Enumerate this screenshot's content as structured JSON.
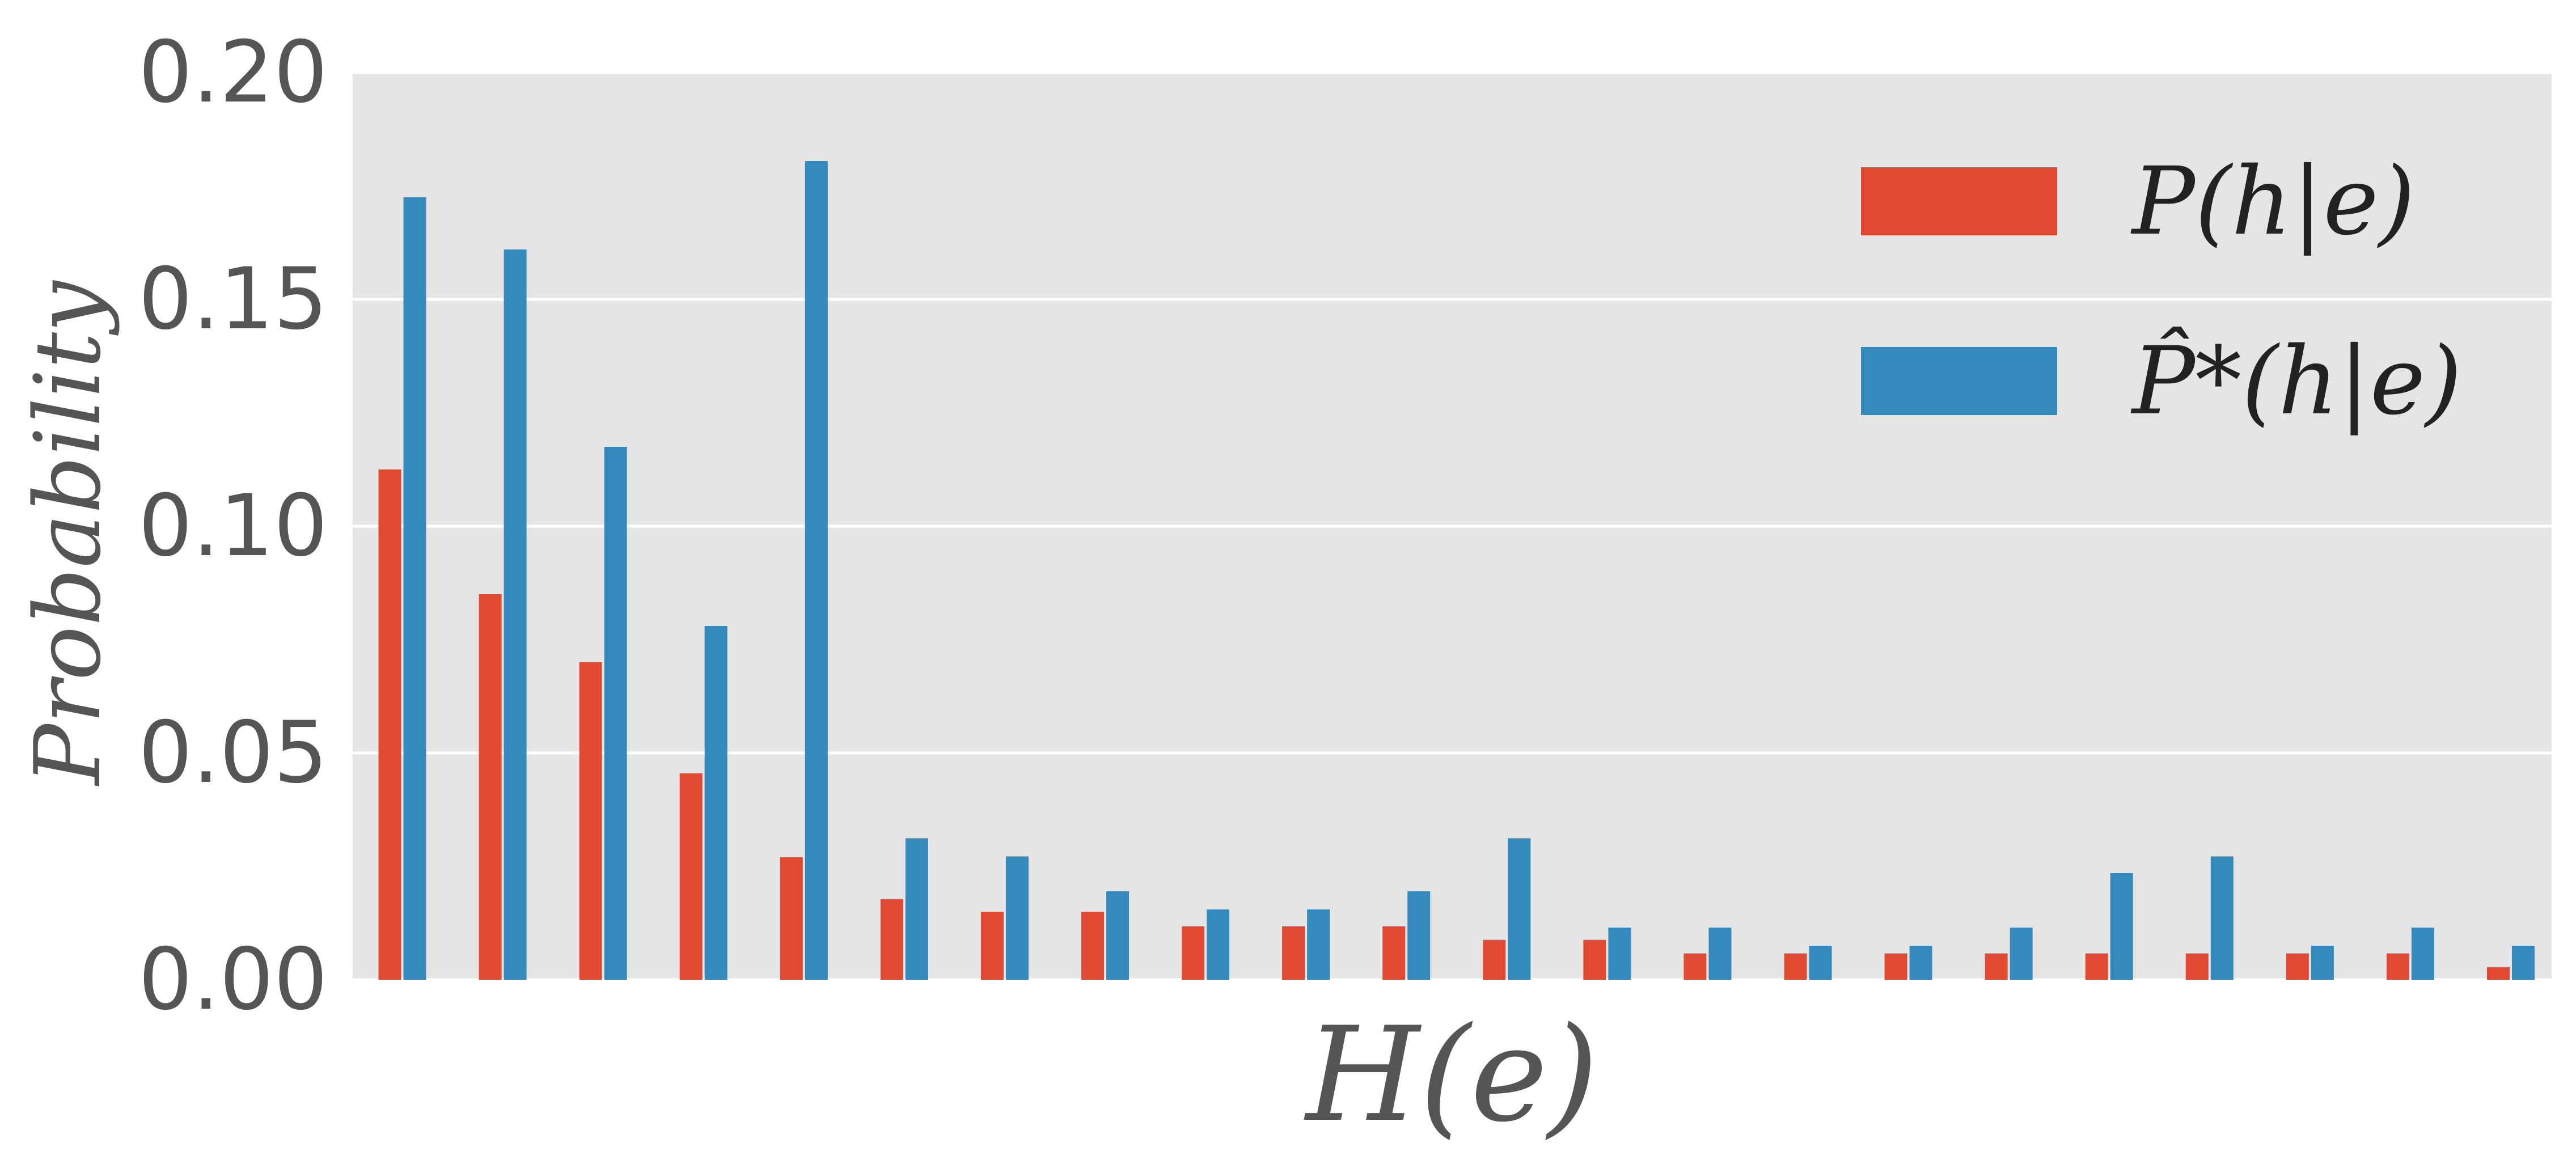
{
  "chart_data": {
    "type": "bar",
    "title": "",
    "xlabel": "H(e)",
    "ylabel": "Probability",
    "ylim": [
      0,
      0.2
    ],
    "yticks": [
      "0.00",
      "0.05",
      "0.10",
      "0.15",
      "0.20"
    ],
    "grid": "horizontal",
    "legend_position": "top-right",
    "background": "#e5e5e5",
    "categories_count": 22,
    "series": [
      {
        "name": "P(h|e)",
        "color": "#e24a33",
        "values": [
          0.1125,
          0.085,
          0.07,
          0.0455,
          0.027,
          0.0178,
          0.015,
          0.015,
          0.0118,
          0.0118,
          0.0118,
          0.0088,
          0.0088,
          0.0058,
          0.0058,
          0.0058,
          0.0058,
          0.0058,
          0.0058,
          0.0058,
          0.0058,
          0.0028
        ]
      },
      {
        "name": "P̂*(h|e)",
        "color": "#348abd",
        "values": [
          0.1725,
          0.161,
          0.1175,
          0.078,
          0.1805,
          0.0312,
          0.0272,
          0.0195,
          0.0155,
          0.0155,
          0.0195,
          0.0312,
          0.0115,
          0.0115,
          0.0075,
          0.0075,
          0.0115,
          0.0235,
          0.0272,
          0.0075,
          0.0115,
          0.0075
        ]
      }
    ]
  }
}
